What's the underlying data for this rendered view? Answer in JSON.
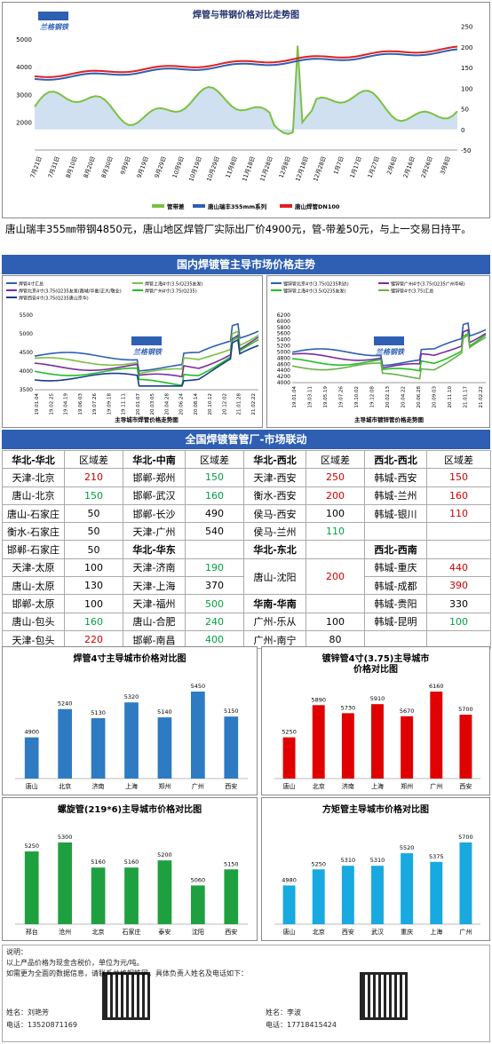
{
  "top_chart": {
    "title": "焊管与带钢价格对比走势图",
    "y_left_ticks": [
      "2000",
      "3000",
      "4000",
      "5000"
    ],
    "y_right_ticks": [
      "-50",
      "0",
      "50",
      "100",
      "150",
      "200",
      "250"
    ],
    "x_ticks": [
      "7月21日",
      "7月31日",
      "8月10日",
      "8月20日",
      "8月30日",
      "9月9日",
      "9月19日",
      "9月29日",
      "10月9日",
      "10月19日",
      "10月29日",
      "11月8日",
      "11月18日",
      "11月28日",
      "12月8日",
      "12月18日",
      "12月28日",
      "1月7日",
      "1月17日",
      "1月27日",
      "2月6日",
      "2月16日",
      "2月26日",
      "3月8日"
    ],
    "legend": [
      "管带差",
      "唐山瑞丰355mm系列",
      "唐山焊管DN100"
    ]
  },
  "summary": "唐山瑞丰355㎜带钢4850元，唐山地区焊管厂实际出厂价4900元，管-带差50元，与上一交易日持平。",
  "banner1": "国内焊镀管主导市场价格走势",
  "banner2": "全国焊镀管管厂-市场联动",
  "mid_left": {
    "legend": [
      "焊管4寸汇总",
      "焊管上海4寸(3.5(Q235友发)",
      "焊管北京4寸(3.75(Q235友发(酉城/华夏/正大/敬业)",
      "焊管广州4寸(3.75(Q235)",
      "焊管西安4寸(3.75(Q235唐山京华)"
    ],
    "y_ticks": [
      "3500",
      "4000",
      "4500",
      "5000",
      "5500"
    ],
    "x_ticks": [
      "19.01.04",
      "19.02.25",
      "19.04.19",
      "19.06.03",
      "19.07.26",
      "19.09.18",
      "19.11.11",
      "20.01.07",
      "20.03.05",
      "20.04.28",
      "20.06.24",
      "20.08.14",
      "20.10.12",
      "20.12.02",
      "21.01.28",
      "21.02.22"
    ],
    "xlabel": "主导城市焊管价格走势图"
  },
  "mid_right": {
    "legend": [
      "镀锌管北京4寸(3.75(Q235利达)",
      "镀锌管广州4寸(3.75(Q235广州华岐)",
      "镀锌管上海4寸(3.5(Q235友发)",
      "镀锌管4寸(3.75)汇总"
    ],
    "y_ticks": [
      "4000",
      "4200",
      "4400",
      "4600",
      "4800",
      "5000",
      "5200",
      "5400",
      "5600",
      "5800",
      "6000",
      "6200"
    ],
    "x_ticks": [
      "19.01.04",
      "19.03.11",
      "19.05.19",
      "19.07.26",
      "19.10.02",
      "19.12.08",
      "20.02.13",
      "20.04.22",
      "20.06.28",
      "20.09.03",
      "20.11.10",
      "21.01.17",
      "21.02.22"
    ],
    "xlabel": "主导城市镀锌管价格走势图"
  },
  "linkage_table": [
    [
      {
        "t": "华北-华北",
        "h": true
      },
      {
        "t": "区域差",
        "h": false
      },
      {
        "t": "华北-中南",
        "h": true
      },
      {
        "t": "区域差",
        "h": false
      },
      {
        "t": "华北-西北",
        "h": true
      },
      {
        "t": "区域差",
        "h": false
      },
      {
        "t": "西北-西北",
        "h": true
      },
      {
        "t": "区域差",
        "h": false
      }
    ],
    [
      {
        "t": "天津-北京"
      },
      {
        "t": "210",
        "c": "#d00000"
      },
      {
        "t": "邯郸-郑州"
      },
      {
        "t": "150",
        "c": "#00a040"
      },
      {
        "t": "天津-西安"
      },
      {
        "t": "250",
        "c": "#d00000"
      },
      {
        "t": "韩城-西安"
      },
      {
        "t": "150",
        "c": "#d00000"
      }
    ],
    [
      {
        "t": "唐山-北京"
      },
      {
        "t": "150",
        "c": "#00a040"
      },
      {
        "t": "邯郸-武汉"
      },
      {
        "t": "160",
        "c": "#00a040"
      },
      {
        "t": "衡水-西安"
      },
      {
        "t": "200",
        "c": "#d00000"
      },
      {
        "t": "韩城-兰州"
      },
      {
        "t": "160",
        "c": "#d00000"
      }
    ],
    [
      {
        "t": "唐山-石家庄"
      },
      {
        "t": "50"
      },
      {
        "t": "邯郸-长沙"
      },
      {
        "t": "490"
      },
      {
        "t": "侯马-西安"
      },
      {
        "t": "100"
      },
      {
        "t": "韩城-银川"
      },
      {
        "t": "110",
        "c": "#d00000"
      }
    ],
    [
      {
        "t": "衡水-石家庄"
      },
      {
        "t": "50"
      },
      {
        "t": "天津-广州"
      },
      {
        "t": "540"
      },
      {
        "t": "侯马-兰州"
      },
      {
        "t": "110",
        "c": "#00a040"
      },
      {
        "t": ""
      },
      {
        "t": ""
      }
    ],
    [
      {
        "t": "邯郸-石家庄"
      },
      {
        "t": "50"
      },
      {
        "t": "华北-华东",
        "h": true
      },
      {
        "t": ""
      },
      {
        "t": "华北-东北",
        "h": true
      },
      {
        "t": ""
      },
      {
        "t": "西北-西南",
        "h": true
      },
      {
        "t": ""
      }
    ],
    [
      {
        "t": "天津-太原"
      },
      {
        "t": "100"
      },
      {
        "t": "天津-济南"
      },
      {
        "t": "190",
        "c": "#00a040"
      },
      {
        "t": "唐山-沈阳",
        "rs": 2
      },
      {
        "t": "200",
        "c": "#d00000",
        "rs": 2
      },
      {
        "t": "韩城-重庆"
      },
      {
        "t": "440",
        "c": "#d00000"
      }
    ],
    [
      {
        "t": "唐山-太原"
      },
      {
        "t": "130"
      },
      {
        "t": "天津-上海"
      },
      {
        "t": "370"
      },
      {
        "skip": true
      },
      {
        "skip": true
      },
      {
        "t": "韩城-成都"
      },
      {
        "t": "390",
        "c": "#d00000"
      }
    ],
    [
      {
        "t": "邯郸-太原"
      },
      {
        "t": "100"
      },
      {
        "t": "天津-福州"
      },
      {
        "t": "500",
        "c": "#00a040"
      },
      {
        "t": "华南-华南",
        "h": true
      },
      {
        "t": ""
      },
      {
        "t": "韩城-贵阳"
      },
      {
        "t": "330"
      }
    ],
    [
      {
        "t": "唐山-包头"
      },
      {
        "t": "160",
        "c": "#00a040"
      },
      {
        "t": "唐山-合肥"
      },
      {
        "t": "240",
        "c": "#00a040"
      },
      {
        "t": "广州-乐从"
      },
      {
        "t": "100"
      },
      {
        "t": "韩城-昆明"
      },
      {
        "t": "100",
        "c": "#00a040"
      }
    ],
    [
      {
        "t": "天津-包头"
      },
      {
        "t": "220",
        "c": "#d00000"
      },
      {
        "t": "邯郸-南昌"
      },
      {
        "t": "400",
        "c": "#00a040"
      },
      {
        "t": "广州-南宁"
      },
      {
        "t": "80"
      },
      {
        "t": ""
      },
      {
        "t": ""
      }
    ]
  ],
  "chart_data": [
    {
      "type": "bar",
      "title": "焊管4寸主导城市价格对比图",
      "categories": [
        "唐山",
        "北京",
        "济南",
        "上海",
        "郑州",
        "广州",
        "西安"
      ],
      "values": [
        4900,
        5240,
        5130,
        5320,
        5140,
        5450,
        5150
      ],
      "color": "#2e7bc4"
    },
    {
      "type": "bar",
      "title": "镀锌管4寸(3.75)主导城市价格对比图",
      "categories": [
        "唐山",
        "北京",
        "济南",
        "上海",
        "郑州",
        "广州",
        "西安"
      ],
      "values": [
        5250,
        5890,
        5730,
        5910,
        5670,
        6160,
        5700
      ],
      "color": "#e00000"
    },
    {
      "type": "bar",
      "title": "螺旋管(219*6)主导城市价格对比图",
      "categories": [
        "邢台",
        "沧州",
        "北京",
        "石家庄",
        "泰安",
        "沈阳",
        "西安"
      ],
      "values": [
        5250,
        5300,
        5160,
        5160,
        5200,
        5060,
        5150
      ],
      "color": "#1fa040"
    },
    {
      "type": "bar",
      "title": "方矩管主导城市价格对比图",
      "categories": [
        "唐山",
        "北京",
        "西安",
        "武汉",
        "重庆",
        "上海",
        "广州"
      ],
      "values": [
        4980,
        5250,
        5310,
        5310,
        5520,
        5375,
        5700
      ],
      "color": "#17a9e0"
    }
  ],
  "notes": {
    "title": "说明：",
    "line1": "以上产品价格为现金含税价，单位为元/吨。",
    "line2": "如需更为全面的数据信息，请联系兰格钢铁网，具体负责人姓名及电话如下：",
    "c1_name": "姓名：刘艳芳",
    "c1_phone": "电话：13520871169",
    "c2_name": "姓名：李波",
    "c2_phone": "电话：17718415424"
  },
  "logo_text": "兰格钢铁"
}
